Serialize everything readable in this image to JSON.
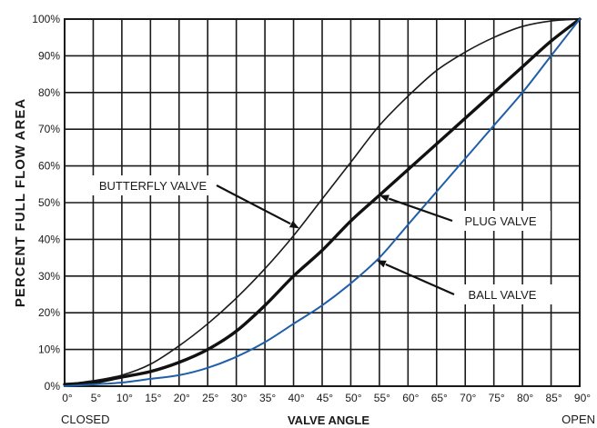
{
  "chart_data": {
    "type": "line",
    "xlabel": "VALVE ANGLE",
    "ylabel": "PERCENT FULL FLOW AREA",
    "x_ticks": [
      "0°",
      "5°",
      "10°",
      "15°",
      "20°",
      "25°",
      "30°",
      "35°",
      "40°",
      "45°",
      "50°",
      "55°",
      "60°",
      "65°",
      "70°",
      "75°",
      "80°",
      "85°",
      "90°"
    ],
    "y_ticks": [
      "0%",
      "10%",
      "20%",
      "30%",
      "40%",
      "50%",
      "60%",
      "70%",
      "80%",
      "90%",
      "100%"
    ],
    "xlim": [
      0,
      90
    ],
    "ylim": [
      0,
      100
    ],
    "grid": true,
    "x_start_label": "CLOSED",
    "x_end_label": "OPEN",
    "series": [
      {
        "name": "BUTTERFLY VALVE",
        "color": "#1a1a1a",
        "x": [
          0,
          5,
          10,
          15,
          20,
          25,
          30,
          35,
          40,
          45,
          50,
          55,
          60,
          65,
          70,
          75,
          80,
          85,
          90
        ],
        "y": [
          0.5,
          1.5,
          3,
          6,
          11,
          17,
          24,
          32,
          41,
          51,
          61,
          71,
          79,
          86,
          91,
          95,
          98,
          99.5,
          100
        ]
      },
      {
        "name": "PLUG VALVE",
        "color": "#111111",
        "x": [
          0,
          5,
          10,
          15,
          20,
          25,
          30,
          35,
          40,
          45,
          50,
          55,
          60,
          65,
          70,
          75,
          80,
          85,
          90
        ],
        "y": [
          0.5,
          1,
          2.5,
          4,
          6.5,
          10,
          15,
          22,
          30,
          37,
          45,
          52,
          59,
          66,
          73,
          80,
          87,
          94,
          100
        ]
      },
      {
        "name": "BALL VALVE",
        "color": "#1f5ea8",
        "x": [
          0,
          5,
          10,
          15,
          20,
          25,
          30,
          35,
          40,
          45,
          50,
          55,
          60,
          65,
          70,
          75,
          80,
          85,
          90
        ],
        "y": [
          0,
          0.5,
          1,
          2,
          3,
          5,
          8,
          12,
          17,
          22,
          28,
          35,
          44,
          53,
          62,
          71,
          80,
          90,
          100
        ]
      }
    ],
    "annotations": [
      {
        "text": "BUTTERFLY VALVE",
        "target_series": 0,
        "target_x": 41
      },
      {
        "text": "PLUG VALVE",
        "target_series": 1,
        "target_x": 55
      },
      {
        "text": "BALL VALVE",
        "target_series": 2,
        "target_x": 54.5
      }
    ]
  }
}
